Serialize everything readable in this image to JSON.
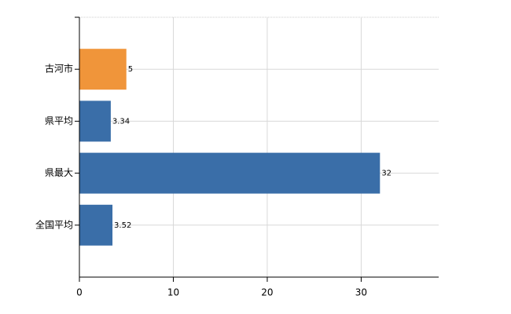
{
  "chart_data": {
    "type": "bar",
    "orientation": "horizontal",
    "categories": [
      "古河市",
      "県平均",
      "県最大",
      "全国平均"
    ],
    "values": [
      5,
      3.34,
      32,
      3.52
    ],
    "colors": [
      "#f0953a",
      "#3a6ea8",
      "#3a6ea8",
      "#3a6ea8"
    ],
    "xlim": [
      0,
      38
    ],
    "xticks": [
      0,
      10,
      20,
      30
    ],
    "grid": true
  }
}
